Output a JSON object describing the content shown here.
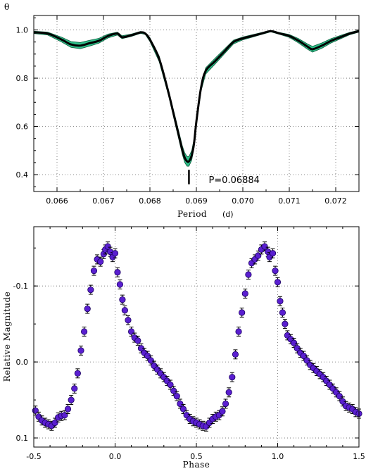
{
  "chart_data": [
    {
      "type": "line",
      "ylabel": "θ",
      "xlabel": "Period",
      "xlabel_unit": "(d)",
      "xlim": [
        0.0655,
        0.0725
      ],
      "ylim": [
        0.33,
        1.06
      ],
      "xticks": [
        "0.066",
        "0.067",
        "0.068",
        "0.069",
        "0.070",
        "0.071",
        "0.072"
      ],
      "yticks": [
        "0.4",
        "0.6",
        "0.8",
        "1.0"
      ],
      "grid": true,
      "annotation": {
        "text": "P=0.06884",
        "x": 0.06884,
        "marker_y_range": [
          0.36,
          0.42
        ]
      },
      "colors": {
        "main": "#000000",
        "band": "#2fbf8a"
      },
      "series": [
        {
          "x": [
            0.0655,
            0.0658,
            0.0661,
            0.0663,
            0.0665,
            0.0667,
            0.0669,
            0.0671,
            0.0673,
            0.0674,
            0.0676,
            0.0678,
            0.0679,
            0.068,
            0.0682,
            0.0684,
            0.0685,
            0.0686,
            0.0687,
            0.06875,
            0.0688,
            0.06884,
            0.0689,
            0.06895,
            0.069,
            0.0691,
            0.0692,
            0.0694,
            0.0696,
            0.0698,
            0.07,
            0.0702,
            0.0704,
            0.0706,
            0.0708,
            0.071,
            0.0712,
            0.0714,
            0.0715,
            0.0717,
            0.0719,
            0.0721,
            0.0723,
            0.0725
          ],
          "y": [
            0.99,
            0.985,
            0.96,
            0.94,
            0.935,
            0.945,
            0.955,
            0.975,
            0.985,
            0.97,
            0.978,
            0.99,
            0.985,
            0.96,
            0.88,
            0.74,
            0.66,
            0.58,
            0.5,
            0.47,
            0.455,
            0.455,
            0.48,
            0.53,
            0.62,
            0.76,
            0.83,
            0.87,
            0.91,
            0.95,
            0.965,
            0.975,
            0.985,
            0.995,
            0.985,
            0.975,
            0.955,
            0.93,
            0.92,
            0.935,
            0.955,
            0.97,
            0.985,
            0.995
          ],
          "band_width": [
            0.005,
            0.006,
            0.01,
            0.012,
            0.013,
            0.012,
            0.01,
            0.008,
            0.006,
            0.006,
            0.005,
            0.004,
            0.004,
            0.008,
            0.012,
            0.012,
            0.014,
            0.016,
            0.018,
            0.02,
            0.02,
            0.02,
            0.02,
            0.018,
            0.016,
            0.014,
            0.013,
            0.012,
            0.01,
            0.008,
            0.006,
            0.005,
            0.004,
            0.003,
            0.004,
            0.006,
            0.009,
            0.011,
            0.012,
            0.011,
            0.009,
            0.007,
            0.005,
            0.004
          ]
        }
      ]
    },
    {
      "type": "scatter",
      "ylabel": "Relative Magnitude",
      "xlabel": "Phase",
      "xlim": [
        -0.5,
        1.5
      ],
      "ylim": [
        0.112,
        -0.178
      ],
      "xticks": [
        "-0.5",
        "0.0",
        "0.5",
        "1.0",
        "1.5"
      ],
      "yticks": [
        "-0.1",
        "0.0",
        "0.1"
      ],
      "ytick_values": [
        -0.1,
        0.0,
        0.1
      ],
      "grid": true,
      "colors": {
        "marker": "#5a1fd0",
        "marker_edge": "#1a0060",
        "error": "#000000"
      },
      "series": [
        {
          "x": [
            -0.49,
            -0.47,
            -0.45,
            -0.43,
            -0.41,
            -0.39,
            -0.37,
            -0.35,
            -0.33,
            -0.31,
            -0.29,
            -0.27,
            -0.25,
            -0.23,
            -0.21,
            -0.19,
            -0.17,
            -0.15,
            -0.13,
            -0.11,
            -0.09,
            -0.07,
            -0.06,
            -0.045,
            -0.03,
            -0.015,
            0.0,
            0.015,
            0.03,
            0.045,
            0.06,
            0.08,
            0.1,
            0.12,
            0.14,
            0.16,
            0.18,
            0.2,
            0.22,
            0.24,
            0.26,
            0.28,
            0.3,
            0.32,
            0.34,
            0.36,
            0.38,
            0.4,
            0.42,
            0.44,
            0.46,
            0.48,
            0.5,
            0.52,
            0.54,
            0.56,
            0.58,
            0.6,
            0.62,
            0.64,
            0.66,
            0.68,
            0.7,
            0.72,
            0.74,
            0.76,
            0.78,
            0.8,
            0.82,
            0.84,
            0.86,
            0.88,
            0.9,
            0.92,
            0.94,
            0.95,
            0.97,
            0.985,
            1.0,
            1.015,
            1.03,
            1.045,
            1.06,
            1.08,
            1.1,
            1.12,
            1.14,
            1.16,
            1.18,
            1.2,
            1.22,
            1.24,
            1.26,
            1.28,
            1.3,
            1.32,
            1.34,
            1.36,
            1.38,
            1.4,
            1.42,
            1.44,
            1.46,
            1.48,
            1.5
          ],
          "y": [
            0.064,
            0.072,
            0.077,
            0.08,
            0.082,
            0.084,
            0.08,
            0.073,
            0.071,
            0.07,
            0.062,
            0.05,
            0.035,
            0.015,
            -0.015,
            -0.04,
            -0.07,
            -0.095,
            -0.12,
            -0.135,
            -0.132,
            -0.142,
            -0.148,
            -0.152,
            -0.145,
            -0.138,
            -0.143,
            -0.118,
            -0.102,
            -0.082,
            -0.068,
            -0.055,
            -0.04,
            -0.032,
            -0.028,
            -0.018,
            -0.012,
            -0.008,
            -0.002,
            0.005,
            0.01,
            0.015,
            0.02,
            0.025,
            0.03,
            0.038,
            0.045,
            0.055,
            0.062,
            0.07,
            0.075,
            0.078,
            0.08,
            0.082,
            0.084,
            0.085,
            0.08,
            0.075,
            0.072,
            0.07,
            0.065,
            0.055,
            0.04,
            0.02,
            -0.01,
            -0.04,
            -0.065,
            -0.09,
            -0.115,
            -0.13,
            -0.135,
            -0.14,
            -0.148,
            -0.152,
            -0.145,
            -0.138,
            -0.143,
            -0.12,
            -0.105,
            -0.08,
            -0.065,
            -0.05,
            -0.035,
            -0.03,
            -0.025,
            -0.018,
            -0.012,
            -0.008,
            -0.002,
            0.004,
            0.008,
            0.012,
            0.016,
            0.02,
            0.025,
            0.03,
            0.035,
            0.04,
            0.045,
            0.052,
            0.058,
            0.06,
            0.062,
            0.066,
            0.068
          ],
          "err": 0.006
        }
      ]
    }
  ]
}
